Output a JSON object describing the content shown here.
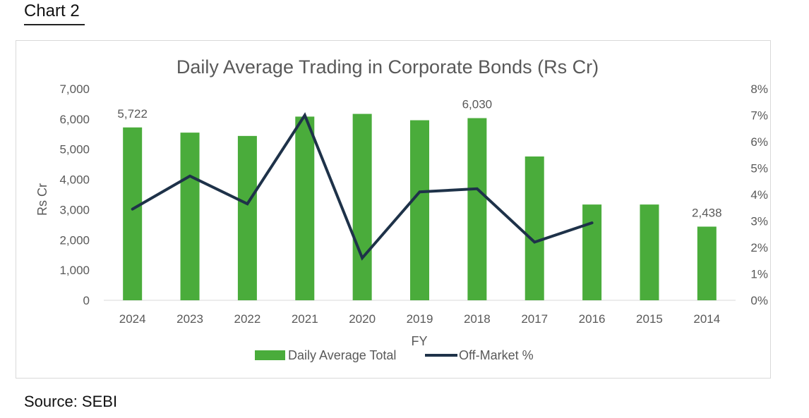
{
  "header": {
    "label": "Chart 2"
  },
  "footer": {
    "source": "Source: SEBI"
  },
  "colors": {
    "bar": "#4aac3b",
    "line": "#1e3249",
    "text": "#595959",
    "axis": "#d9d9d9"
  },
  "chart_data": {
    "type": "bar",
    "title": "Daily Average Trading in Corporate Bonds (Rs Cr)",
    "xlabel": "FY",
    "ylabel": "Rs Cr",
    "categories": [
      "2024",
      "2023",
      "2022",
      "2021",
      "2020",
      "2019",
      "2018",
      "2017",
      "2016",
      "2015",
      "2014"
    ],
    "ylim": [
      0,
      7000
    ],
    "yticks": [
      "0",
      "1,000",
      "2,000",
      "3,000",
      "4,000",
      "5,000",
      "6,000",
      "7,000"
    ],
    "y2lim": [
      0,
      8
    ],
    "y2ticks": [
      "0%",
      "1%",
      "2%",
      "3%",
      "4%",
      "5%",
      "6%",
      "7%",
      "8%"
    ],
    "legend_position": "bottom",
    "series": [
      {
        "name": "Daily Average Total",
        "type": "bar",
        "axis": "left",
        "values": [
          5722,
          5550,
          5440,
          6080,
          6170,
          5960,
          6030,
          4760,
          3170,
          3170,
          2438
        ]
      },
      {
        "name": "Off-Market %",
        "type": "line",
        "axis": "right",
        "values": [
          3.45,
          4.7,
          3.65,
          7.0,
          1.6,
          4.1,
          4.22,
          2.2,
          2.93,
          null,
          null
        ]
      }
    ],
    "data_labels": [
      {
        "category": "2024",
        "text": "5,722"
      },
      {
        "category": "2018",
        "text": "6,030"
      },
      {
        "category": "2014",
        "text": "2,438"
      }
    ]
  }
}
